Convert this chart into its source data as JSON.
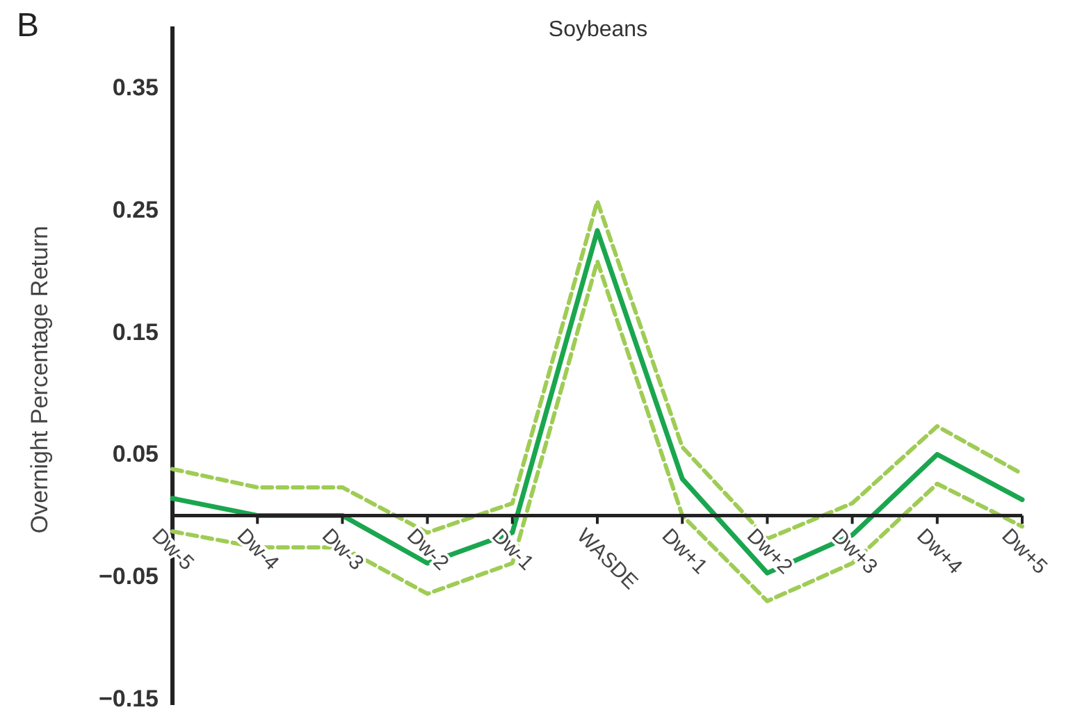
{
  "chart_data": {
    "type": "line",
    "title": "Soybeans",
    "ylabel": "Overnight Percentage Return",
    "annotations": [
      "B"
    ],
    "categories": [
      "Dw-5",
      "Dw-4",
      "Dw-3",
      "Dw-2",
      "Dw-1",
      "WASDE",
      "Dw+1",
      "Dw+2",
      "Dw+3",
      "Dw+4",
      "Dw+5"
    ],
    "series": [
      {
        "color": "#9fcc55",
        "line_style": "dashed",
        "values": [
          0.038,
          0.023,
          0.023,
          -0.014,
          0.01,
          0.257,
          0.056,
          -0.019,
          0.01,
          0.073,
          0.034
        ]
      },
      {
        "color": "#9fcc55",
        "line_style": "dashed",
        "values": [
          -0.013,
          -0.026,
          -0.026,
          -0.064,
          -0.039,
          0.208,
          0,
          -0.07,
          -0.039,
          0.026,
          -0.009
        ]
      },
      {
        "color": "#1aa64f",
        "line_style": "solid",
        "values": [
          0.014,
          0,
          0,
          -0.039,
          -0.014,
          0.233,
          0.03,
          -0.047,
          -0.016,
          0.05,
          0.013
        ]
      }
    ],
    "ylim": [
      -0.155,
      0.4
    ],
    "yticks": [
      {
        "value": -0.15,
        "label": "−0.15"
      },
      {
        "value": -0.05,
        "label": "−0.05"
      },
      0.05,
      0.15,
      0.25,
      0.35
    ],
    "grid": false,
    "marker": "none"
  }
}
